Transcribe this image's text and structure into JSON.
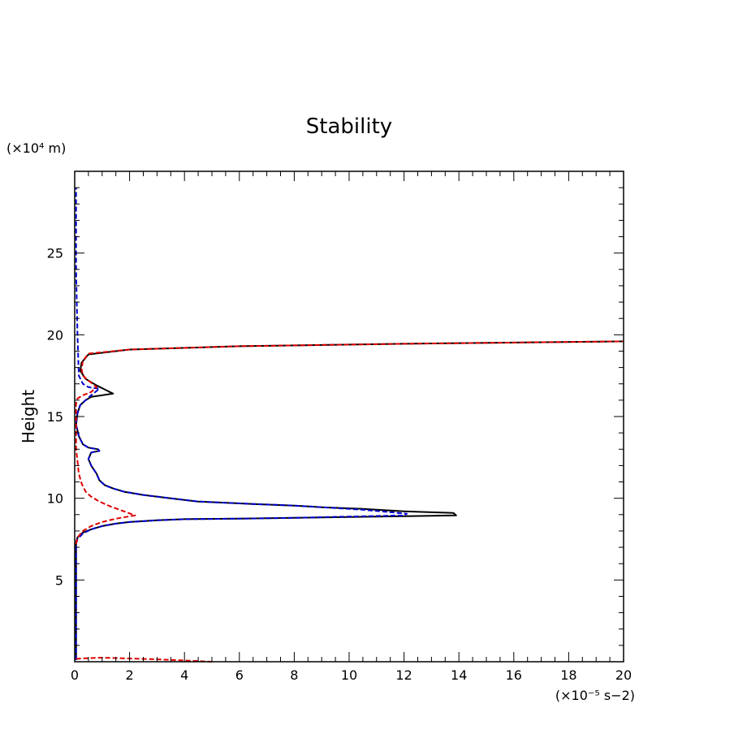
{
  "chart_data": {
    "type": "line",
    "title": "Stability",
    "xlabel": "",
    "ylabel": "Height",
    "x_unit": "(×10⁻⁵ s−2)",
    "y_unit": "(×10⁴ m)",
    "xlim": [
      0,
      20
    ],
    "ylim": [
      0,
      30
    ],
    "x_ticks": [
      "0",
      "2",
      "4",
      "6",
      "8",
      "10",
      "12",
      "14",
      "16",
      "18",
      "20"
    ],
    "y_ticks": [
      "5",
      "10",
      "15",
      "20",
      "25"
    ],
    "grid": false,
    "legend": null,
    "colors": {
      "series1": "#000000",
      "series2": "#0000cc",
      "series3": "#dd0000"
    },
    "series": [
      {
        "style": "solid",
        "color": "#000000",
        "x": [
          0.05,
          0.05,
          0.1,
          0.3,
          0.6,
          1.0,
          1.5,
          2.0,
          3.0,
          4.0,
          6.0,
          8.0,
          10.0,
          12.0,
          13.9,
          13.8,
          12.0,
          10.5,
          9.0,
          8.0,
          6.5,
          4.5,
          3.5,
          2.5,
          1.8,
          1.4,
          1.1,
          0.9,
          0.8,
          0.6,
          0.5,
          0.6,
          0.9,
          0.85,
          0.5,
          0.3,
          0.15,
          0.05,
          0.1,
          0.2,
          0.4,
          0.6,
          1.4,
          0.8,
          0.4,
          0.2,
          0.25,
          0.5,
          2.0,
          6.0,
          12.0,
          20.0
        ],
        "y": [
          0.1,
          7.3,
          7.6,
          7.9,
          8.1,
          8.3,
          8.45,
          8.55,
          8.65,
          8.72,
          8.75,
          8.8,
          8.85,
          8.9,
          8.95,
          9.1,
          9.2,
          9.35,
          9.45,
          9.55,
          9.65,
          9.8,
          10.0,
          10.2,
          10.4,
          10.6,
          10.8,
          11.1,
          11.5,
          12.0,
          12.4,
          12.8,
          12.9,
          13.0,
          13.1,
          13.3,
          13.8,
          14.5,
          15.2,
          15.7,
          16.0,
          16.2,
          16.4,
          16.9,
          17.3,
          17.8,
          18.3,
          18.8,
          19.1,
          19.3,
          19.45,
          19.6
        ]
      },
      {
        "style": "dashed",
        "color": "#0000cc",
        "x": [
          0.05,
          0.05,
          0.1,
          0.3,
          0.6,
          1.0,
          1.5,
          2.0,
          3.0,
          4.0,
          6.0,
          8.0,
          10.0,
          12.0,
          12.1,
          11.5,
          10.5,
          9.0,
          8.0,
          6.5,
          4.5,
          3.5,
          2.5,
          1.8,
          1.4,
          1.1,
          0.9,
          0.8,
          0.6,
          0.5,
          0.6,
          0.9,
          0.85,
          0.5,
          0.3,
          0.15,
          0.05,
          0.1,
          0.2,
          0.4,
          0.6,
          0.9,
          0.5,
          0.3,
          0.15,
          0.1,
          0.05,
          0.05,
          0.05
        ],
        "y": [
          0.1,
          7.2,
          7.5,
          7.85,
          8.1,
          8.3,
          8.45,
          8.55,
          8.65,
          8.72,
          8.75,
          8.8,
          8.88,
          8.95,
          9.05,
          9.15,
          9.3,
          9.45,
          9.55,
          9.65,
          9.8,
          10.0,
          10.2,
          10.4,
          10.6,
          10.8,
          11.1,
          11.5,
          12.0,
          12.4,
          12.8,
          12.9,
          13.0,
          13.1,
          13.3,
          13.8,
          14.5,
          15.2,
          15.7,
          16.0,
          16.3,
          16.7,
          16.8,
          17.0,
          17.5,
          20.0,
          24.0,
          27.0,
          29.0
        ]
      },
      {
        "style": "dashed",
        "color": "#dd0000",
        "x": [
          0.05,
          0.1,
          0.3,
          0.6,
          1.0,
          1.5,
          2.2,
          1.8,
          1.3,
          0.9,
          0.6,
          0.4,
          0.25,
          0.15,
          0.1,
          0.05,
          0.05,
          0.05,
          0.05,
          0.1,
          0.3,
          0.6,
          0.8,
          0.5,
          0.3,
          0.25,
          0.3,
          0.5,
          2.0,
          6.0,
          12.0,
          20.0
        ],
        "y": [
          7.2,
          7.6,
          8.0,
          8.3,
          8.55,
          8.75,
          8.95,
          9.2,
          9.5,
          9.8,
          10.1,
          10.4,
          10.9,
          11.5,
          12.3,
          13.0,
          14.0,
          15.0,
          15.8,
          16.1,
          16.3,
          16.5,
          16.8,
          17.2,
          17.5,
          17.9,
          18.4,
          18.85,
          19.1,
          19.3,
          19.45,
          19.6
        ]
      },
      {
        "style": "dashed",
        "color": "#dd0000",
        "x": [
          0.05,
          0.5,
          1.0,
          2.0,
          3.0,
          4.0,
          5.0
        ],
        "y": [
          0.18,
          0.22,
          0.25,
          0.2,
          0.15,
          0.08,
          0.0
        ]
      }
    ]
  }
}
